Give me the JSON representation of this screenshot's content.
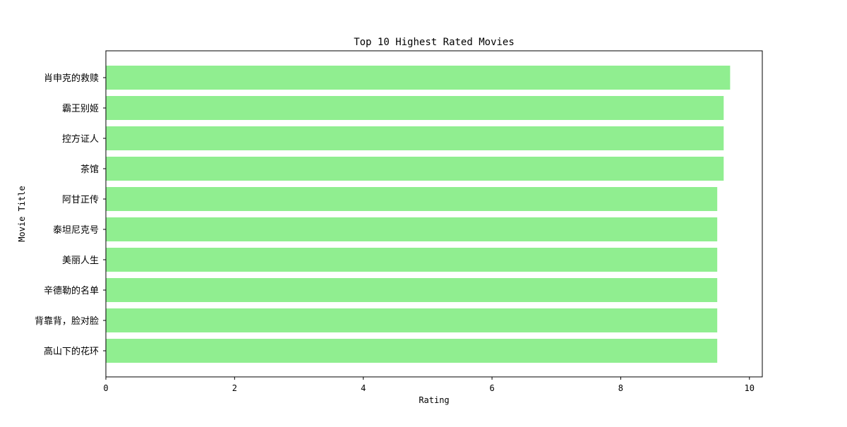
{
  "chart_data": {
    "type": "bar",
    "orientation": "horizontal",
    "title": "Top 10 Highest Rated Movies",
    "xlabel": "Rating",
    "ylabel": "Movie Title",
    "categories": [
      "肖申克的救赎",
      "霸王别姬",
      "控方证人",
      "茶馆",
      "阿甘正传",
      "泰坦尼克号",
      "美丽人生",
      "辛德勒的名单",
      "背靠背，脸对脸",
      "高山下的花环"
    ],
    "values": [
      9.7,
      9.6,
      9.6,
      9.6,
      9.5,
      9.5,
      9.5,
      9.5,
      9.5,
      9.5
    ],
    "xlim": [
      0,
      10.2
    ],
    "xticks": [
      0,
      2,
      4,
      6,
      8,
      10
    ],
    "xtick_labels": [
      "0",
      "2",
      "4",
      "6",
      "8",
      "10"
    ],
    "grid": false,
    "bar_color": "#90ee90"
  }
}
